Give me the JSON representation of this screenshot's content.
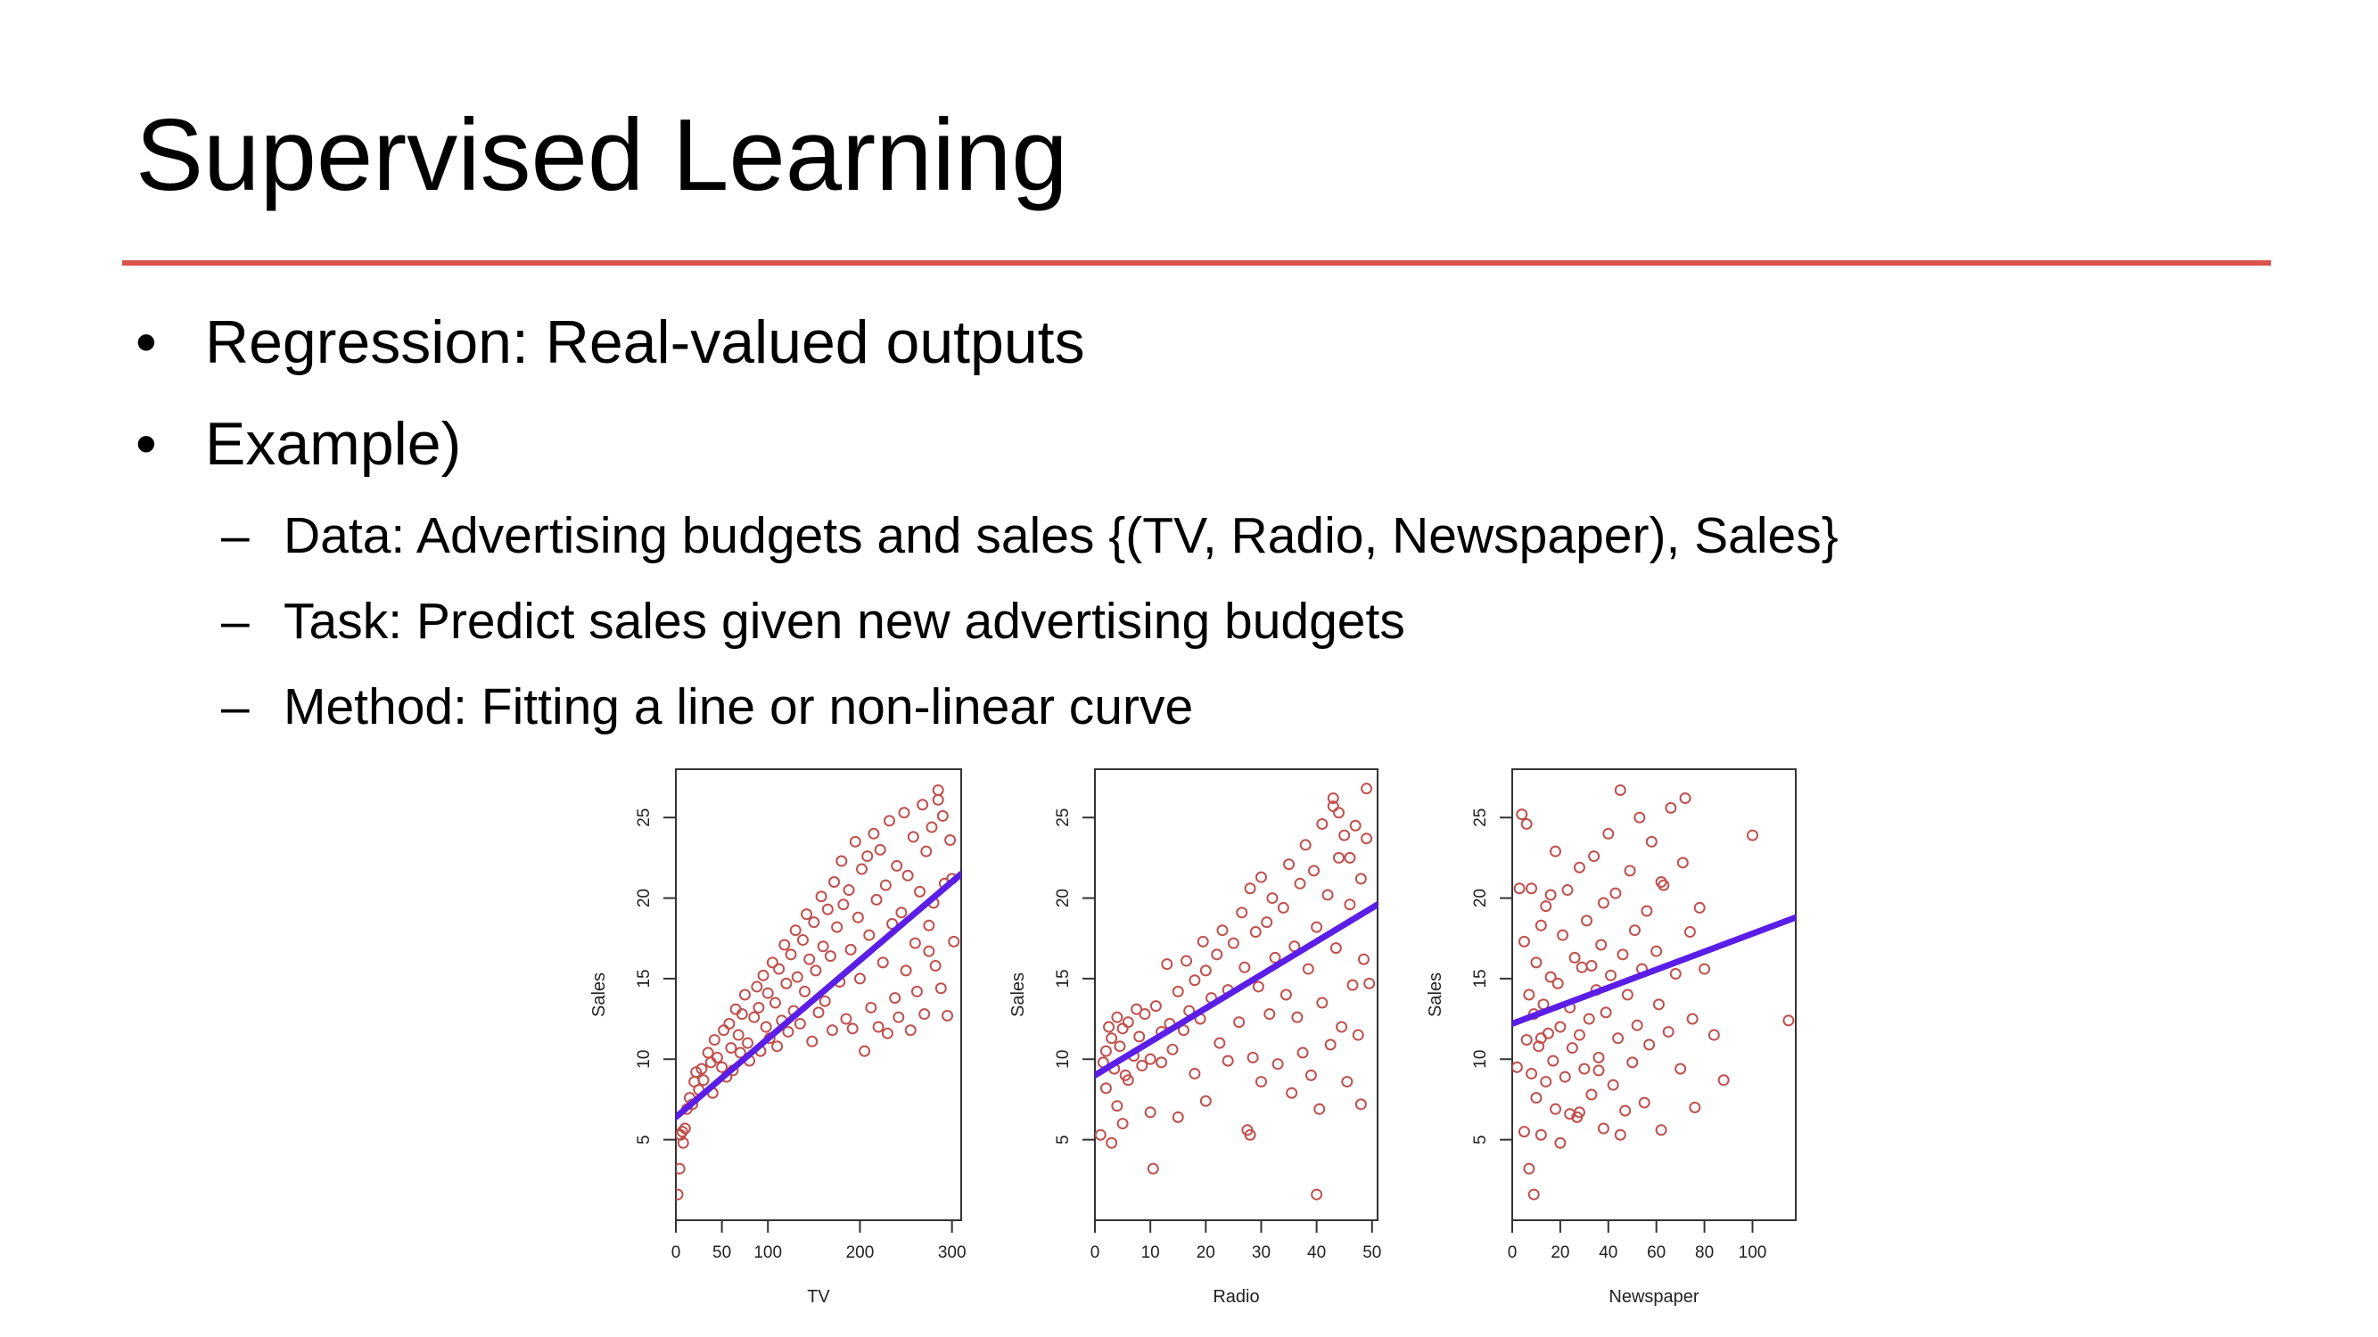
{
  "slide": {
    "title": "Supervised Learning",
    "accent_color": "#d9534a"
  },
  "bullets": [
    {
      "level": 1,
      "marker": "•",
      "text": "Regression: Real-valued outputs"
    },
    {
      "level": 1,
      "marker": "•",
      "text": "Example)"
    },
    {
      "level": 2,
      "marker": "–",
      "text": "Data: Advertising budgets and sales {(TV, Radio, Newspaper), Sales}"
    },
    {
      "level": 2,
      "marker": "–",
      "text": "Task: Predict sales given new advertising budgets"
    },
    {
      "level": 2,
      "marker": "–",
      "text": "Method: Fitting a line or non-linear curve"
    }
  ],
  "chart_data": [
    {
      "type": "scatter",
      "xlabel": "TV",
      "ylabel": "Sales",
      "xlim": [
        0,
        310
      ],
      "ylim": [
        0,
        28
      ],
      "xticks": [
        "0",
        "50",
        "100",
        "200",
        "300"
      ],
      "xtick_values": [
        0,
        50,
        100,
        200,
        300
      ],
      "yticks": [
        "5",
        "10",
        "15",
        "20",
        "25"
      ],
      "ytick_values": [
        5,
        10,
        15,
        20,
        25
      ],
      "point_color": "#c0504d",
      "fit_color": "#5b1ee6",
      "fit": {
        "kind": "line",
        "x": [
          0,
          310
        ],
        "y": [
          6.4,
          21.5
        ]
      },
      "points": [
        [
          2,
          1.6
        ],
        [
          4,
          3.2
        ],
        [
          5,
          5.3
        ],
        [
          7,
          5.5
        ],
        [
          8,
          4.8
        ],
        [
          10,
          5.7
        ],
        [
          12,
          6.9
        ],
        [
          15,
          7.6
        ],
        [
          18,
          7.2
        ],
        [
          20,
          8.6
        ],
        [
          22,
          9.2
        ],
        [
          25,
          8.1
        ],
        [
          28,
          9.4
        ],
        [
          30,
          8.7
        ],
        [
          35,
          10.4
        ],
        [
          38,
          9.8
        ],
        [
          40,
          7.9
        ],
        [
          42,
          11.2
        ],
        [
          45,
          10.1
        ],
        [
          50,
          9.5
        ],
        [
          52,
          11.8
        ],
        [
          55,
          8.9
        ],
        [
          58,
          12.2
        ],
        [
          60,
          10.7
        ],
        [
          62,
          9.3
        ],
        [
          65,
          13.1
        ],
        [
          68,
          11.5
        ],
        [
          70,
          10.4
        ],
        [
          72,
          12.8
        ],
        [
          75,
          14.0
        ],
        [
          78,
          11.0
        ],
        [
          80,
          9.9
        ],
        [
          85,
          12.6
        ],
        [
          88,
          14.5
        ],
        [
          90,
          13.2
        ],
        [
          92,
          10.5
        ],
        [
          95,
          15.2
        ],
        [
          98,
          12.0
        ],
        [
          100,
          14.1
        ],
        [
          102,
          11.3
        ],
        [
          105,
          16.0
        ],
        [
          108,
          13.5
        ],
        [
          110,
          10.8
        ],
        [
          112,
          15.6
        ],
        [
          115,
          12.4
        ],
        [
          118,
          17.1
        ],
        [
          120,
          14.7
        ],
        [
          122,
          11.7
        ],
        [
          125,
          16.5
        ],
        [
          128,
          13.0
        ],
        [
          130,
          18.0
        ],
        [
          132,
          15.1
        ],
        [
          135,
          12.2
        ],
        [
          138,
          17.4
        ],
        [
          140,
          14.2
        ],
        [
          142,
          19.0
        ],
        [
          145,
          16.2
        ],
        [
          148,
          11.1
        ],
        [
          150,
          18.5
        ],
        [
          152,
          15.5
        ],
        [
          155,
          12.9
        ],
        [
          158,
          20.1
        ],
        [
          160,
          17.0
        ],
        [
          162,
          13.6
        ],
        [
          165,
          19.3
        ],
        [
          168,
          16.4
        ],
        [
          170,
          11.8
        ],
        [
          172,
          21.0
        ],
        [
          175,
          18.2
        ],
        [
          178,
          14.8
        ],
        [
          180,
          22.3
        ],
        [
          182,
          19.6
        ],
        [
          185,
          12.5
        ],
        [
          188,
          20.5
        ],
        [
          190,
          16.8
        ],
        [
          192,
          11.9
        ],
        [
          195,
          23.5
        ],
        [
          198,
          18.8
        ],
        [
          200,
          15.0
        ],
        [
          202,
          21.8
        ],
        [
          205,
          10.5
        ],
        [
          208,
          22.6
        ],
        [
          210,
          17.7
        ],
        [
          212,
          13.2
        ],
        [
          215,
          24.0
        ],
        [
          218,
          19.9
        ],
        [
          220,
          12.0
        ],
        [
          222,
          23.0
        ],
        [
          225,
          16.0
        ],
        [
          228,
          20.8
        ],
        [
          230,
          11.6
        ],
        [
          232,
          24.8
        ],
        [
          235,
          18.4
        ],
        [
          238,
          13.8
        ],
        [
          240,
          22.0
        ],
        [
          242,
          12.6
        ],
        [
          245,
          19.1
        ],
        [
          248,
          25.3
        ],
        [
          250,
          15.5
        ],
        [
          252,
          21.4
        ],
        [
          255,
          11.8
        ],
        [
          258,
          23.8
        ],
        [
          260,
          17.2
        ],
        [
          262,
          14.2
        ],
        [
          265,
          20.4
        ],
        [
          268,
          25.8
        ],
        [
          270,
          12.8
        ],
        [
          272,
          22.9
        ],
        [
          275,
          16.7
        ],
        [
          278,
          24.4
        ],
        [
          280,
          19.7
        ],
        [
          282,
          15.8
        ],
        [
          285,
          26.7
        ],
        [
          288,
          14.4
        ],
        [
          290,
          25.1
        ],
        [
          292,
          20.9
        ],
        [
          295,
          12.7
        ],
        [
          298,
          23.6
        ],
        [
          300,
          21.2
        ],
        [
          302,
          17.3
        ],
        [
          285,
          26.1
        ],
        [
          275,
          18.3
        ]
      ]
    },
    {
      "type": "scatter",
      "xlabel": "Radio",
      "ylabel": "Sales",
      "xlim": [
        0,
        51
      ],
      "ylim": [
        0,
        28
      ],
      "xticks": [
        "0",
        "10",
        "20",
        "30",
        "40",
        "50"
      ],
      "xtick_values": [
        0,
        10,
        20,
        30,
        40,
        50
      ],
      "yticks": [
        "5",
        "10",
        "15",
        "20",
        "25"
      ],
      "ytick_values": [
        5,
        10,
        15,
        20,
        25
      ],
      "point_color": "#c0504d",
      "fit_color": "#5b1ee6",
      "fit": {
        "kind": "line",
        "x": [
          0,
          51
        ],
        "y": [
          9.0,
          19.6
        ]
      },
      "points": [
        [
          1,
          5.3
        ],
        [
          1.5,
          9.8
        ],
        [
          2,
          10.5
        ],
        [
          2,
          8.2
        ],
        [
          2.5,
          12.0
        ],
        [
          3,
          4.8
        ],
        [
          3,
          11.3
        ],
        [
          3.5,
          9.4
        ],
        [
          4,
          7.1
        ],
        [
          4,
          12.6
        ],
        [
          4.5,
          10.8
        ],
        [
          5,
          6.0
        ],
        [
          5,
          11.9
        ],
        [
          5.5,
          9.0
        ],
        [
          6,
          12.3
        ],
        [
          6,
          8.7
        ],
        [
          7,
          10.2
        ],
        [
          7.5,
          13.1
        ],
        [
          8,
          11.4
        ],
        [
          8.5,
          9.6
        ],
        [
          9,
          12.8
        ],
        [
          10,
          10.0
        ],
        [
          10,
          6.7
        ],
        [
          10.5,
          3.2
        ],
        [
          11,
          13.3
        ],
        [
          12,
          9.8
        ],
        [
          12,
          11.7
        ],
        [
          13,
          15.9
        ],
        [
          13.5,
          12.2
        ],
        [
          14,
          10.6
        ],
        [
          15,
          6.4
        ],
        [
          15,
          14.2
        ],
        [
          16,
          11.8
        ],
        [
          16.5,
          16.1
        ],
        [
          17,
          13.0
        ],
        [
          18,
          9.1
        ],
        [
          18,
          14.9
        ],
        [
          19,
          12.5
        ],
        [
          19.5,
          17.3
        ],
        [
          20,
          15.5
        ],
        [
          20,
          7.4
        ],
        [
          21,
          13.8
        ],
        [
          22,
          16.5
        ],
        [
          22.5,
          11.0
        ],
        [
          23,
          18.0
        ],
        [
          24,
          14.3
        ],
        [
          24,
          9.9
        ],
        [
          25,
          17.2
        ],
        [
          26,
          12.3
        ],
        [
          26.5,
          19.1
        ],
        [
          27,
          15.7
        ],
        [
          27.5,
          5.6
        ],
        [
          28,
          20.6
        ],
        [
          28.5,
          10.1
        ],
        [
          29,
          17.9
        ],
        [
          29.5,
          14.5
        ],
        [
          30,
          21.3
        ],
        [
          30,
          8.6
        ],
        [
          31,
          18.5
        ],
        [
          31.5,
          12.8
        ],
        [
          32,
          20.0
        ],
        [
          32.5,
          16.3
        ],
        [
          33,
          9.7
        ],
        [
          34,
          19.4
        ],
        [
          34.5,
          14.0
        ],
        [
          35,
          22.1
        ],
        [
          35.5,
          7.9
        ],
        [
          36,
          17.0
        ],
        [
          36.5,
          12.6
        ],
        [
          37,
          20.9
        ],
        [
          37.5,
          10.4
        ],
        [
          38,
          23.3
        ],
        [
          38.5,
          15.6
        ],
        [
          39,
          9.0
        ],
        [
          39.5,
          21.7
        ],
        [
          40,
          18.2
        ],
        [
          40.5,
          6.9
        ],
        [
          41,
          24.6
        ],
        [
          41,
          13.5
        ],
        [
          42,
          20.2
        ],
        [
          42.5,
          10.9
        ],
        [
          43,
          25.7
        ],
        [
          43.5,
          16.9
        ],
        [
          44,
          22.5
        ],
        [
          44.5,
          12.0
        ],
        [
          45,
          23.9
        ],
        [
          45.5,
          8.6
        ],
        [
          46,
          19.6
        ],
        [
          46.5,
          14.6
        ],
        [
          47,
          24.5
        ],
        [
          47.5,
          11.5
        ],
        [
          48,
          21.2
        ],
        [
          48.5,
          16.2
        ],
        [
          49,
          26.8
        ],
        [
          49,
          23.7
        ],
        [
          49.5,
          14.7
        ],
        [
          48,
          7.2
        ],
        [
          43,
          26.2
        ],
        [
          44,
          25.3
        ],
        [
          40,
          1.6
        ],
        [
          28,
          5.3
        ],
        [
          46,
          22.5
        ]
      ]
    },
    {
      "type": "scatter",
      "xlabel": "Newspaper",
      "ylabel": "Sales",
      "xlim": [
        0,
        118
      ],
      "ylim": [
        0,
        28
      ],
      "xticks": [
        "0",
        "20",
        "40",
        "60",
        "80",
        "100"
      ],
      "xtick_values": [
        0,
        20,
        40,
        60,
        80,
        100
      ],
      "yticks": [
        "5",
        "10",
        "15",
        "20",
        "25"
      ],
      "ytick_values": [
        5,
        10,
        15,
        20,
        25
      ],
      "point_color": "#c0504d",
      "fit_color": "#5b1ee6",
      "fit": {
        "kind": "line",
        "x": [
          0,
          118
        ],
        "y": [
          12.2,
          18.8
        ]
      },
      "points": [
        [
          2,
          9.5
        ],
        [
          3,
          20.6
        ],
        [
          4,
          25.2
        ],
        [
          5,
          5.5
        ],
        [
          5,
          17.3
        ],
        [
          6,
          24.6
        ],
        [
          6,
          11.2
        ],
        [
          7,
          3.2
        ],
        [
          7,
          14.0
        ],
        [
          8,
          9.1
        ],
        [
          8,
          20.6
        ],
        [
          9,
          12.8
        ],
        [
          9,
          1.6
        ],
        [
          10,
          16.0
        ],
        [
          10,
          7.6
        ],
        [
          11,
          10.8
        ],
        [
          12,
          18.3
        ],
        [
          12,
          5.3
        ],
        [
          13,
          13.4
        ],
        [
          14,
          8.6
        ],
        [
          14,
          19.5
        ],
        [
          15,
          11.6
        ],
        [
          16,
          15.1
        ],
        [
          17,
          9.9
        ],
        [
          18,
          22.9
        ],
        [
          18,
          6.9
        ],
        [
          19,
          14.7
        ],
        [
          20,
          12.0
        ],
        [
          21,
          17.7
        ],
        [
          22,
          8.9
        ],
        [
          23,
          20.5
        ],
        [
          24,
          13.2
        ],
        [
          25,
          10.7
        ],
        [
          26,
          16.3
        ],
        [
          27,
          6.4
        ],
        [
          28,
          21.9
        ],
        [
          28,
          11.5
        ],
        [
          29,
          15.7
        ],
        [
          30,
          9.4
        ],
        [
          31,
          18.6
        ],
        [
          32,
          12.5
        ],
        [
          33,
          7.8
        ],
        [
          34,
          22.6
        ],
        [
          35,
          14.3
        ],
        [
          36,
          10.1
        ],
        [
          37,
          17.1
        ],
        [
          38,
          5.7
        ],
        [
          38,
          19.7
        ],
        [
          39,
          12.9
        ],
        [
          40,
          24.0
        ],
        [
          41,
          15.2
        ],
        [
          42,
          8.4
        ],
        [
          43,
          20.3
        ],
        [
          44,
          11.3
        ],
        [
          45,
          26.7
        ],
        [
          46,
          16.5
        ],
        [
          47,
          6.8
        ],
        [
          48,
          14.0
        ],
        [
          49,
          21.7
        ],
        [
          50,
          9.8
        ],
        [
          51,
          18.0
        ],
        [
          52,
          12.1
        ],
        [
          53,
          25.0
        ],
        [
          54,
          15.6
        ],
        [
          55,
          7.3
        ],
        [
          56,
          19.2
        ],
        [
          57,
          10.9
        ],
        [
          58,
          23.5
        ],
        [
          60,
          16.7
        ],
        [
          61,
          13.4
        ],
        [
          62,
          5.6
        ],
        [
          63,
          20.8
        ],
        [
          65,
          11.7
        ],
        [
          66,
          25.6
        ],
        [
          68,
          15.3
        ],
        [
          70,
          9.4
        ],
        [
          71,
          22.2
        ],
        [
          72,
          26.2
        ],
        [
          74,
          17.9
        ],
        [
          75,
          12.5
        ],
        [
          76,
          7.0
        ],
        [
          78,
          19.4
        ],
        [
          80,
          15.6
        ],
        [
          84,
          11.5
        ],
        [
          88,
          8.7
        ],
        [
          100,
          23.9
        ],
        [
          115,
          12.4
        ],
        [
          24,
          6.6
        ],
        [
          33,
          15.8
        ],
        [
          45,
          5.3
        ],
        [
          62,
          21.0
        ],
        [
          36,
          9.3
        ],
        [
          28,
          6.7
        ],
        [
          12,
          11.3
        ],
        [
          16,
          20.2
        ],
        [
          20,
          4.8
        ]
      ]
    }
  ]
}
